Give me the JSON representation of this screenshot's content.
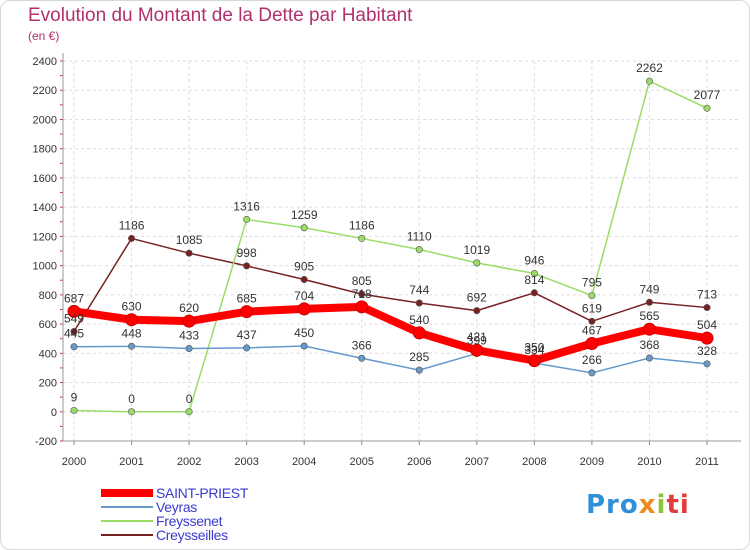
{
  "title": "Evolution du Montant de la Dette par Habitant",
  "subtitle": "(en €)",
  "logo": {
    "p1": "Pro",
    "p2": "x",
    "p3": "i",
    "p4": "ti"
  },
  "chart_data": {
    "type": "line",
    "title": "Evolution du Montant de la Dette par Habitant",
    "ylabel": "(en €)",
    "xlabel": "",
    "x": [
      "2000",
      "2001",
      "2002",
      "2003",
      "2004",
      "2005",
      "2006",
      "2007",
      "2008",
      "2009",
      "2010",
      "2011"
    ],
    "ylim": [
      -200,
      2400
    ],
    "yticks": [
      -200,
      0,
      200,
      400,
      600,
      800,
      1000,
      1200,
      1400,
      1600,
      1800,
      2000,
      2200,
      2400
    ],
    "grid": true,
    "legend_position": "bottom-left",
    "series": [
      {
        "name": "SAINT-PRIEST",
        "color": "#ff0000",
        "values": [
          687,
          630,
          620,
          685,
          704,
          718,
          540,
          421,
          350,
          467,
          565,
          504
        ]
      },
      {
        "name": "Veyras",
        "color": "#6699cc",
        "values": [
          445,
          448,
          433,
          437,
          450,
          366,
          285,
          399,
          334,
          266,
          368,
          328
        ]
      },
      {
        "name": "Freyssenet",
        "color": "#99dd66",
        "values": [
          9,
          0,
          0,
          1316,
          1259,
          1186,
          1110,
          1019,
          946,
          795,
          2262,
          2077
        ]
      },
      {
        "name": "Creysseilles",
        "color": "#772222",
        "values": [
          549,
          1186,
          1085,
          998,
          905,
          805,
          744,
          692,
          814,
          619,
          749,
          713
        ]
      }
    ]
  }
}
